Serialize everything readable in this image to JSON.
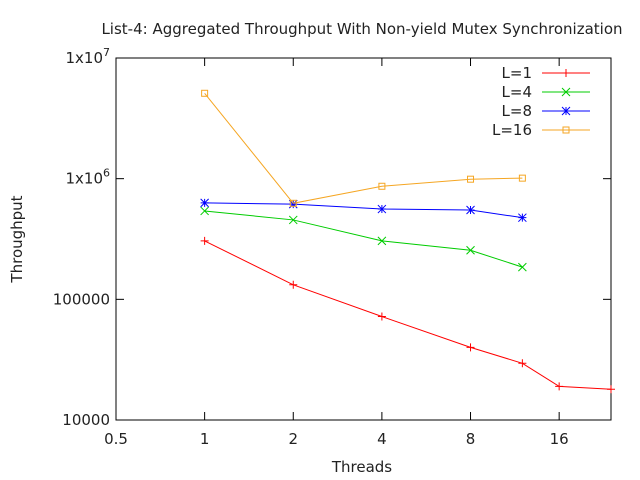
{
  "chart_data": {
    "type": "line",
    "title": "List-4: Aggregated Throughput With Non-yield Mutex Synchronization",
    "xlabel": "Threads",
    "ylabel": "Throughput",
    "x_scale": "log2",
    "y_scale": "log10",
    "xlim": [
      0.5,
      24
    ],
    "ylim": [
      10000,
      10000000
    ],
    "xticks": [
      {
        "value": 0.5,
        "label": "0.5"
      },
      {
        "value": 1,
        "label": "1"
      },
      {
        "value": 2,
        "label": "2"
      },
      {
        "value": 4,
        "label": "4"
      },
      {
        "value": 8,
        "label": "8"
      },
      {
        "value": 16,
        "label": "16"
      }
    ],
    "yticks": [
      {
        "value": 10000,
        "label": "10000"
      },
      {
        "value": 100000,
        "label": "100000"
      },
      {
        "value": 1000000,
        "label": "1x10",
        "sup": "6"
      },
      {
        "value": 10000000,
        "label": "1x10",
        "sup": "7"
      }
    ],
    "grid": false,
    "legend_position": "top-right",
    "series": [
      {
        "name": "L=1",
        "color": "#ff0000",
        "marker": "plus",
        "x": [
          1,
          2,
          4,
          8,
          12,
          16,
          24
        ],
        "y": [
          305000,
          132000,
          72000,
          40000,
          29500,
          19000,
          18000
        ]
      },
      {
        "name": "L=4",
        "color": "#00cc00",
        "marker": "cross",
        "x": [
          1,
          2,
          4,
          8,
          12
        ],
        "y": [
          540000,
          455000,
          305000,
          255000,
          185000
        ]
      },
      {
        "name": "L=8",
        "color": "#0000ff",
        "marker": "star",
        "x": [
          1,
          2,
          4,
          8,
          12
        ],
        "y": [
          630000,
          615000,
          560000,
          550000,
          475000
        ]
      },
      {
        "name": "L=16",
        "color": "#f5a623",
        "marker": "square",
        "x": [
          1,
          2,
          4,
          8,
          12
        ],
        "y": [
          5100000,
          625000,
          865000,
          990000,
          1010000
        ]
      }
    ]
  }
}
